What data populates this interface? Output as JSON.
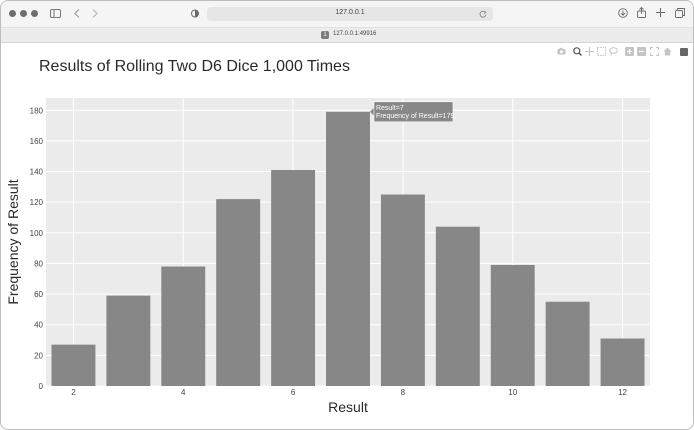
{
  "browser": {
    "url": "127.0.0.1",
    "tab_title": "127.0.0.1:49916",
    "tab_badge": "1"
  },
  "icons": {
    "toolbar": [
      "sidebar-icon",
      "back-icon",
      "forward-icon",
      "shield-icon",
      "reload-icon",
      "download-icon",
      "share-icon",
      "new-tab-icon",
      "tab-overview-icon"
    ],
    "modebar": [
      "camera-icon",
      "zoom-icon",
      "pan-icon",
      "box-select-icon",
      "lasso-icon",
      "zoom-in-icon",
      "zoom-out-icon",
      "autoscale-icon",
      "reset-axes-icon",
      "plotly-logo-icon"
    ]
  },
  "chart_data": {
    "type": "bar",
    "title": "Results of Rolling Two D6 Dice 1,000 Times",
    "xlabel": "Result",
    "ylabel": "Frequency of Result",
    "categories": [
      2,
      3,
      4,
      5,
      6,
      7,
      8,
      9,
      10,
      11,
      12
    ],
    "values": [
      27,
      59,
      78,
      122,
      141,
      179,
      125,
      104,
      79,
      55,
      31
    ],
    "xticks": [
      2,
      4,
      6,
      8,
      10,
      12
    ],
    "yticks": [
      0,
      20,
      40,
      60,
      80,
      100,
      120,
      140,
      160,
      180
    ],
    "ylim": [
      0,
      188
    ],
    "xlim": [
      1.5,
      12.5
    ],
    "grid": true,
    "bar_color": "#878787",
    "plot_bg": "#ebebeb",
    "tooltip": {
      "line1": "Result=7",
      "line2": "Frequency of Result=179"
    }
  }
}
